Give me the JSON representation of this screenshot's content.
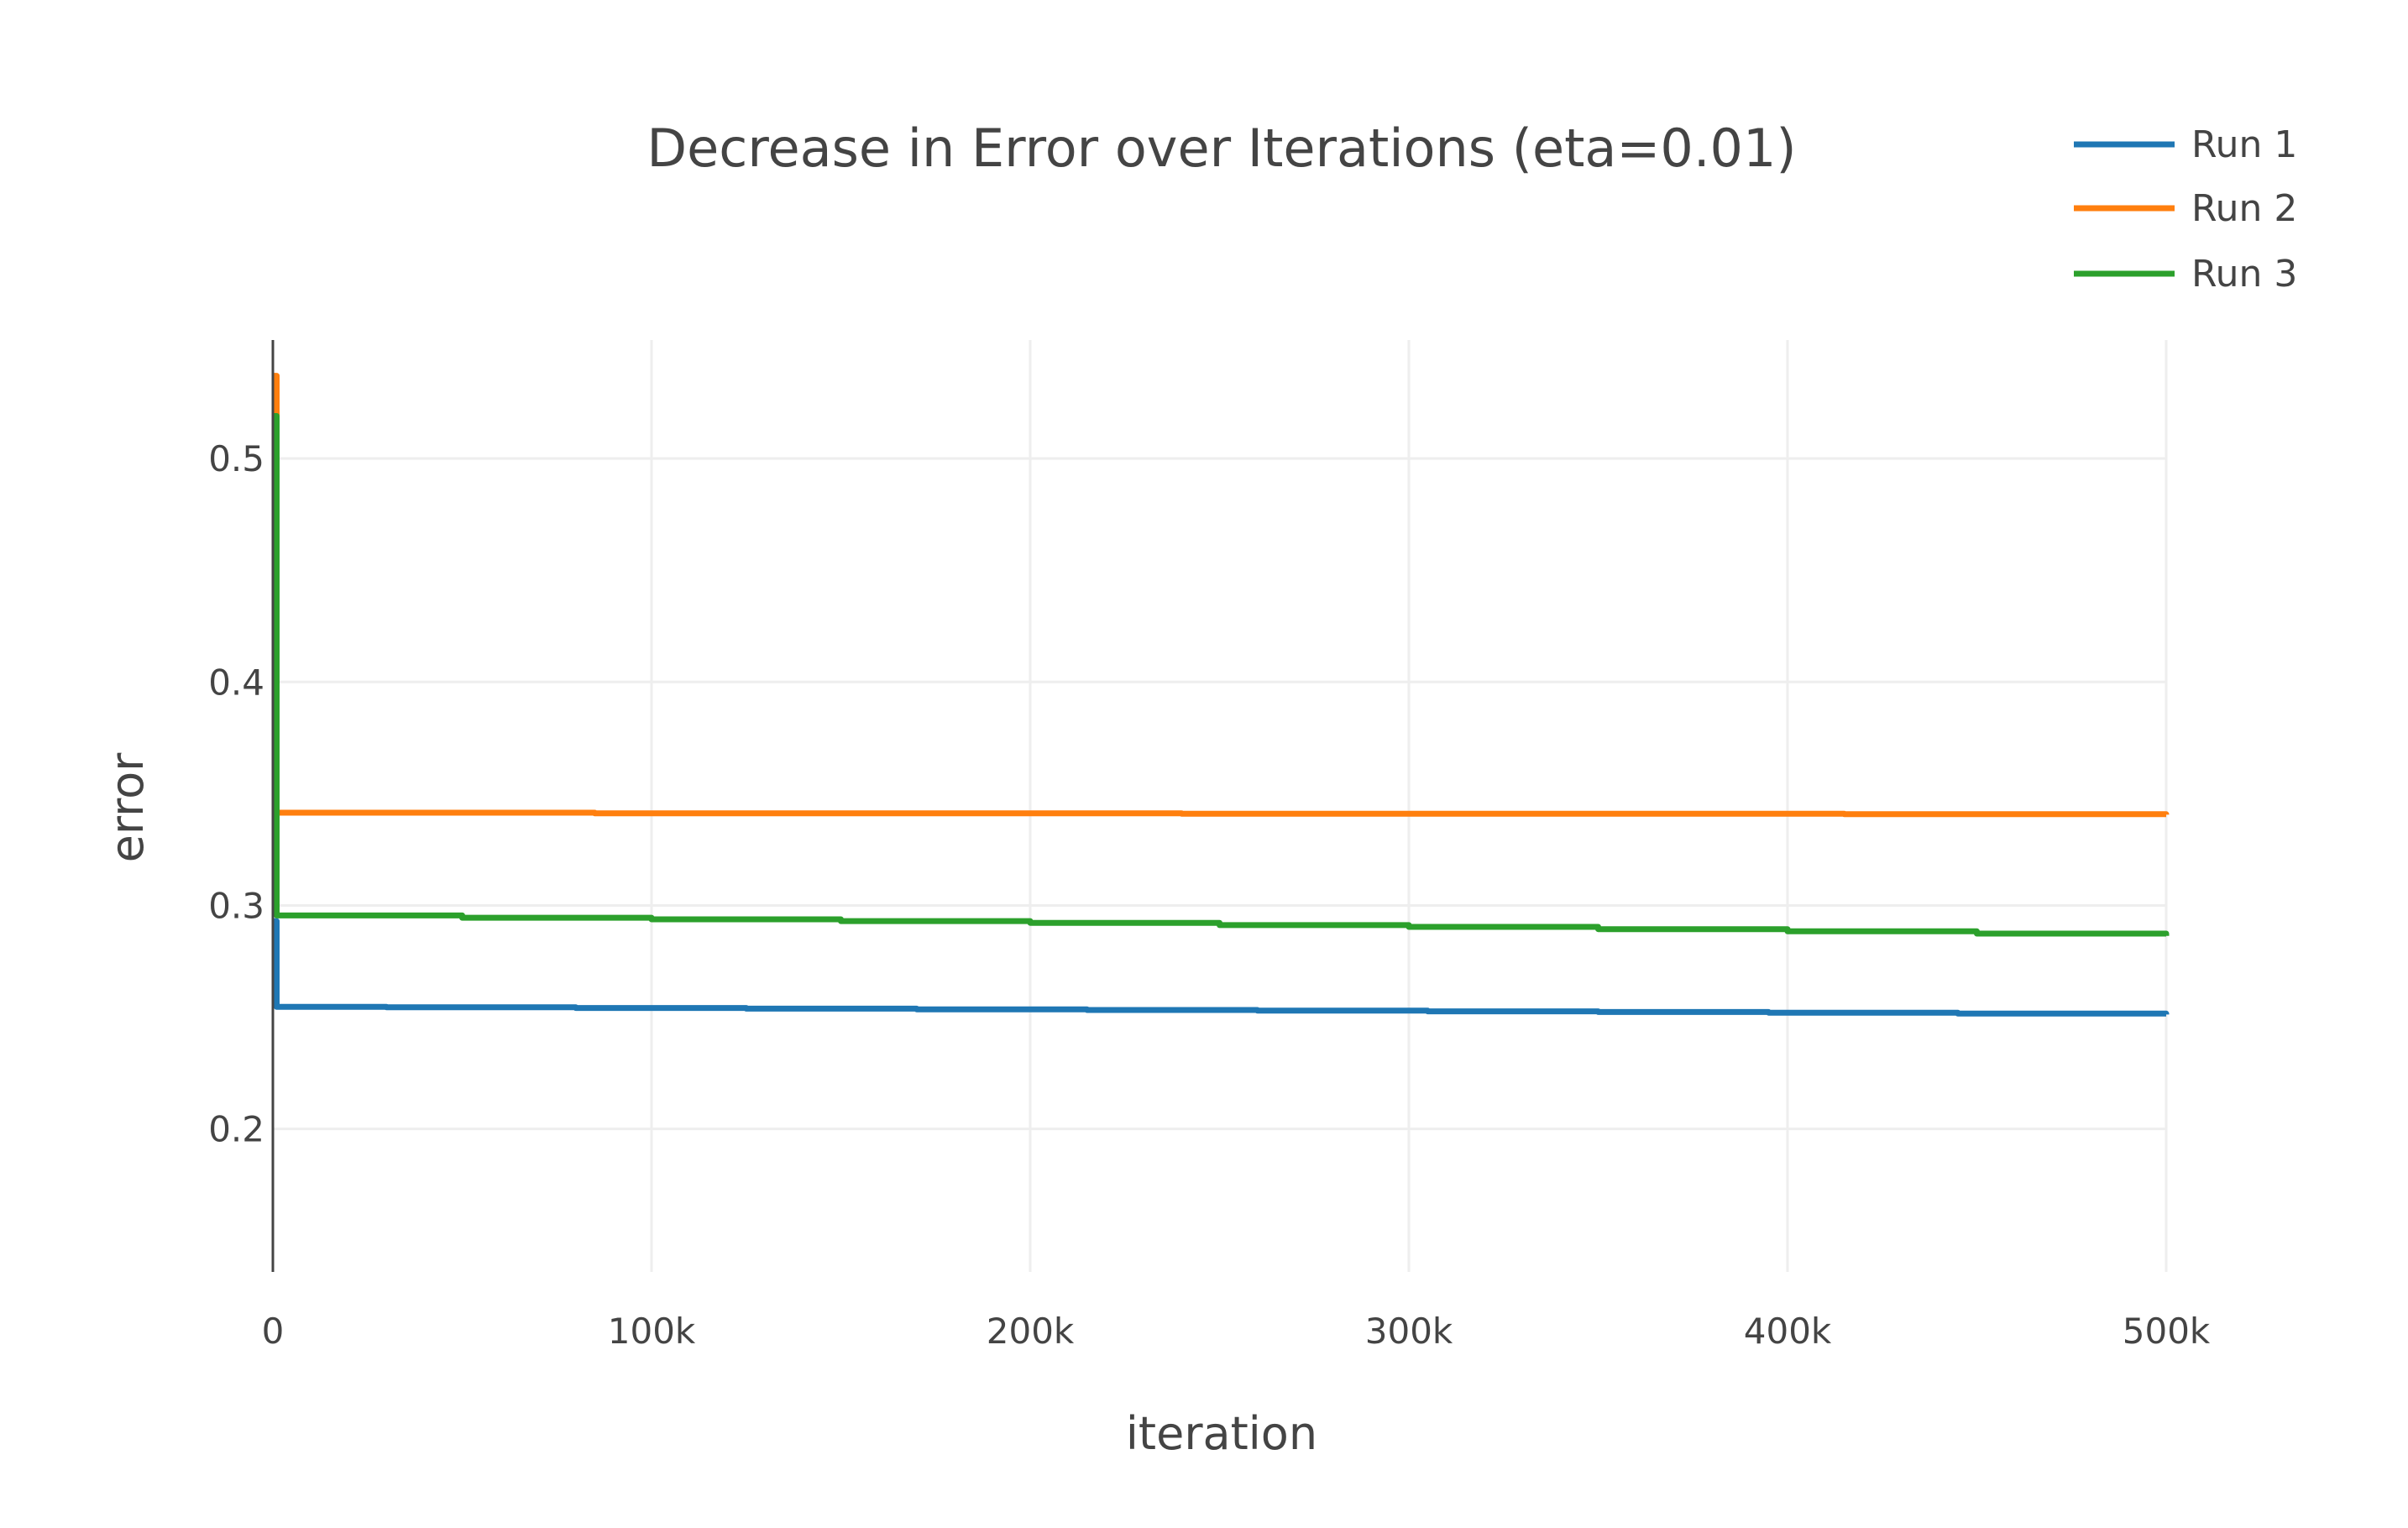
{
  "chart_data": {
    "type": "line",
    "title": "Decrease in Error over Iterations (eta=0.01)",
    "xlabel": "iteration",
    "ylabel": "error",
    "xlim": [
      0,
      500000
    ],
    "ylim": [
      0.136,
      0.553
    ],
    "x_ticks": [
      0,
      100000,
      200000,
      300000,
      400000,
      500000
    ],
    "x_tick_labels": [
      "0",
      "100k",
      "200k",
      "300k",
      "400k",
      "500k"
    ],
    "y_ticks": [
      0.2,
      0.3,
      0.4,
      0.5
    ],
    "y_tick_labels": [
      "0.2",
      "0.3",
      "0.4",
      "0.5"
    ],
    "grid": true,
    "legend_position": "top-right",
    "series": [
      {
        "name": "Run 1",
        "color": "#1f77b4",
        "x": [
          0,
          1000,
          30000,
          80000,
          125000,
          170000,
          215000,
          260000,
          305000,
          350000,
          395000,
          445000,
          500000
        ],
        "y": [
          0.293,
          0.2546,
          0.2544,
          0.2541,
          0.2538,
          0.2535,
          0.2532,
          0.2529,
          0.2526,
          0.2523,
          0.252,
          0.2516,
          0.2512
        ]
      },
      {
        "name": "Run 2",
        "color": "#ff7f0e",
        "x": [
          0,
          1000,
          85000,
          240000,
          415000,
          500000
        ],
        "y": [
          0.537,
          0.3415,
          0.3412,
          0.341,
          0.3408,
          0.3406
        ]
      },
      {
        "name": "Run 3",
        "color": "#2ca02c",
        "x": [
          0,
          1000,
          50000,
          100000,
          150000,
          200000,
          250000,
          300000,
          350000,
          400000,
          450000,
          500000
        ],
        "y": [
          0.519,
          0.2955,
          0.2945,
          0.2938,
          0.293,
          0.2922,
          0.2912,
          0.2904,
          0.2894,
          0.2884,
          0.2874,
          0.2864
        ]
      }
    ]
  }
}
